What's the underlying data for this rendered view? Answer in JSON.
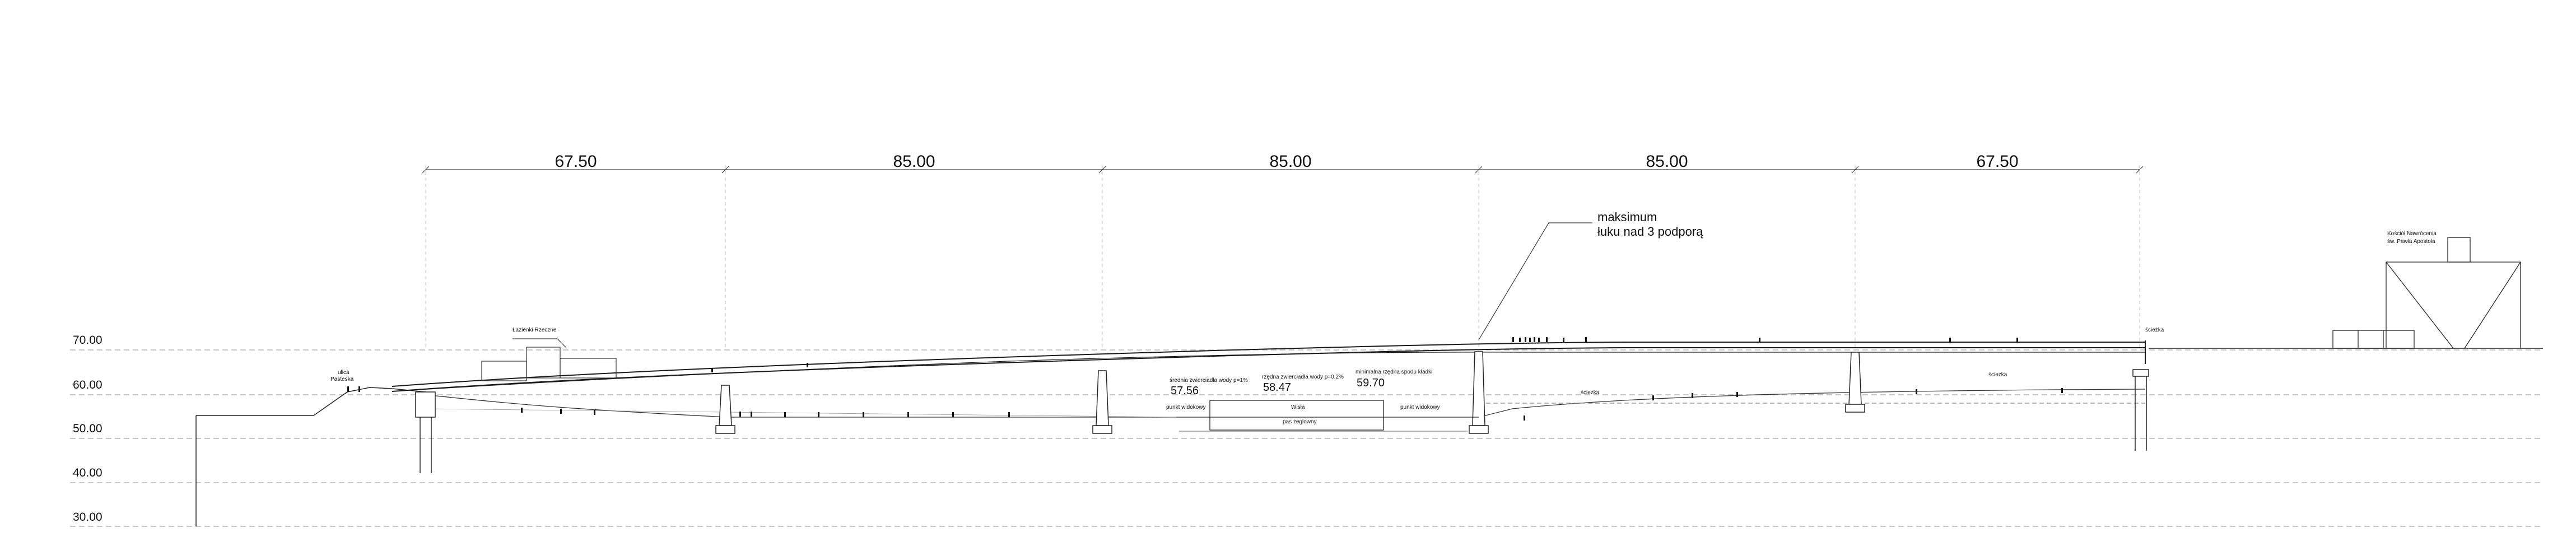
{
  "spans": [
    "67.50",
    "85.00",
    "85.00",
    "85.00",
    "67.50"
  ],
  "elevations": [
    "70.00",
    "60.00",
    "50.00",
    "40.00",
    "30.00"
  ],
  "annotation": {
    "line1": "maksimum",
    "line2": "łuku nad 3 podporą"
  },
  "labels": {
    "street": "ulica",
    "street_name": "Pasteska",
    "lazienki": "Łazienki Rzeczne",
    "church_line1": "Kościół Nawrócenia",
    "church_line2": "św. Pawła Apostoła",
    "sciezka": "ścieżka",
    "wisla": "Wisła",
    "low_water_title": "średnia zwierciadła wody p=1%",
    "low_water_value": "57.56",
    "mid_water_title": "rzędna zwierciadła wody p=0.2%",
    "mid_water_value": "58.47",
    "high_water_title": "minimalna rzędna spodu kładki",
    "high_water_value": "59.70",
    "pas_zeglowny": "pas żeglowny",
    "punkt_widokowy": "punkt widokowy"
  },
  "colors": {
    "line": "#1a1a1a",
    "grid": "#b0b0b0"
  }
}
